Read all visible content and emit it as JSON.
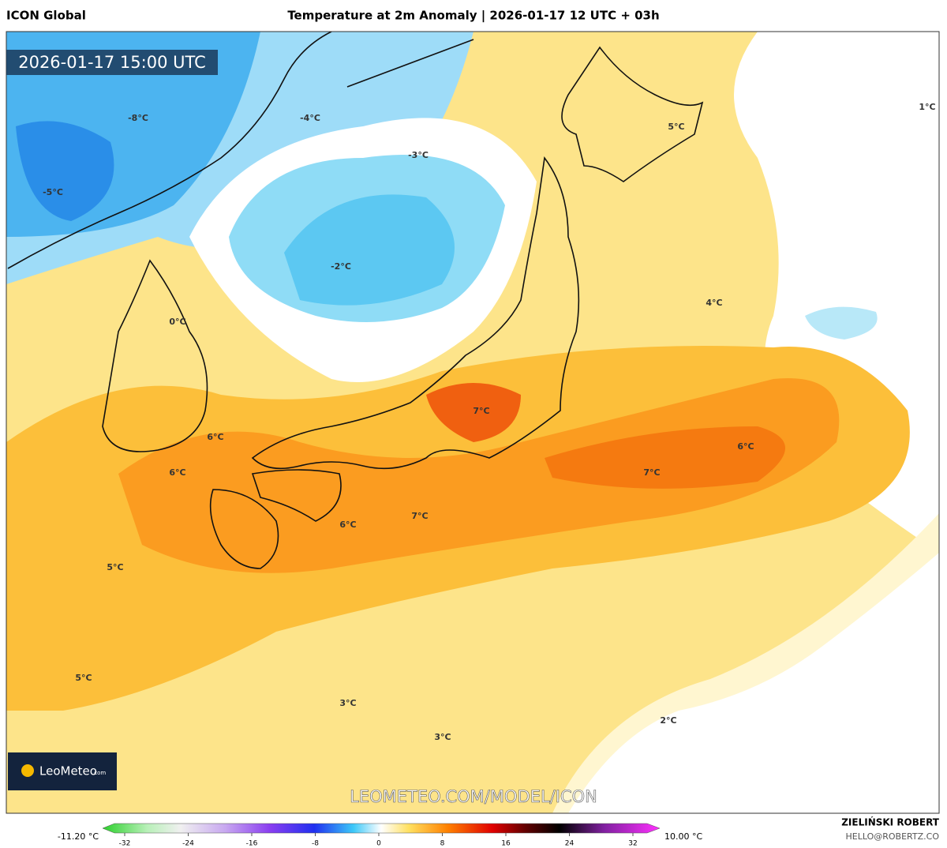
{
  "header": {
    "model": "ICON Global",
    "title": "Temperature at 2m Anomaly | 2026-01-17 12 UTC + 03h"
  },
  "timestamp": "2026-01-17 15:00 UTC",
  "map_labels": [
    "-8°C",
    "-4°C",
    "-3°C",
    "-5°C",
    "-2°C",
    "0°C",
    "1°C",
    "5°C",
    "4°C",
    "7°C",
    "6°C",
    "6°C",
    "6°C",
    "7°C",
    "6°C",
    "7°C",
    "5°C",
    "5°C",
    "3°C",
    "2°C",
    "3°C"
  ],
  "logo": {
    "name": "LeoMeteo",
    "suffix": ".com"
  },
  "watermark": "LEOMETEO.COM/MODEL/ICON",
  "colorbar": {
    "min_label": "-11.20 °C",
    "max_label": "10.00 °C",
    "ticks": [
      -32,
      -24,
      -16,
      -8,
      0,
      8,
      16,
      24,
      32
    ]
  },
  "footer": {
    "author": "ZIELIŃSKI ROBERT",
    "email": "HELLO@ROBERTZ.CO"
  }
}
